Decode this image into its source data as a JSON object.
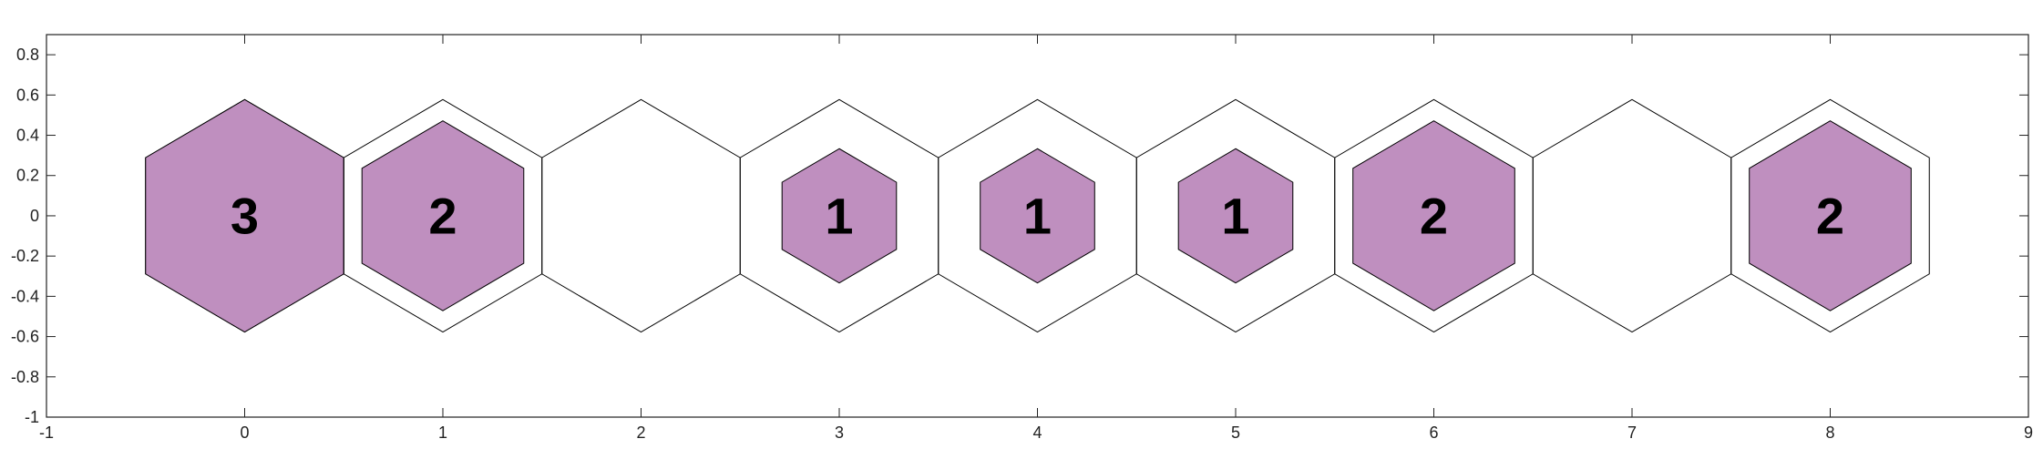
{
  "chart_data": {
    "type": "hexbin",
    "xlim": [
      -1,
      9
    ],
    "ylim": [
      -1,
      0.9
    ],
    "x_ticks": [
      -1,
      0,
      1,
      2,
      3,
      4,
      5,
      6,
      7,
      8,
      9
    ],
    "y_ticks": [
      -1,
      -0.8,
      -0.6,
      -0.4,
      -0.2,
      0,
      0.2,
      0.4,
      0.6,
      0.8
    ],
    "x_tick_labels": [
      "-1",
      "0",
      "1",
      "2",
      "3",
      "4",
      "5",
      "6",
      "7",
      "8",
      "9"
    ],
    "y_tick_labels": [
      "-1",
      "-0.8",
      "-0.6",
      "-0.4",
      "-0.2",
      "0",
      "0.2",
      "0.4",
      "0.6",
      "0.8"
    ],
    "grid": false,
    "max_count": 3,
    "fill_color": "#bf8fbf",
    "edge_color": "#000000",
    "cells": [
      {
        "x": 0,
        "count": 3,
        "label": "3"
      },
      {
        "x": 1,
        "count": 2,
        "label": "2"
      },
      {
        "x": 2,
        "count": 0,
        "label": ""
      },
      {
        "x": 3,
        "count": 1,
        "label": "1"
      },
      {
        "x": 4,
        "count": 1,
        "label": "1"
      },
      {
        "x": 5,
        "count": 1,
        "label": "1"
      },
      {
        "x": 6,
        "count": 2,
        "label": "2"
      },
      {
        "x": 7,
        "count": 0,
        "label": ""
      },
      {
        "x": 8,
        "count": 2,
        "label": "2"
      }
    ]
  }
}
